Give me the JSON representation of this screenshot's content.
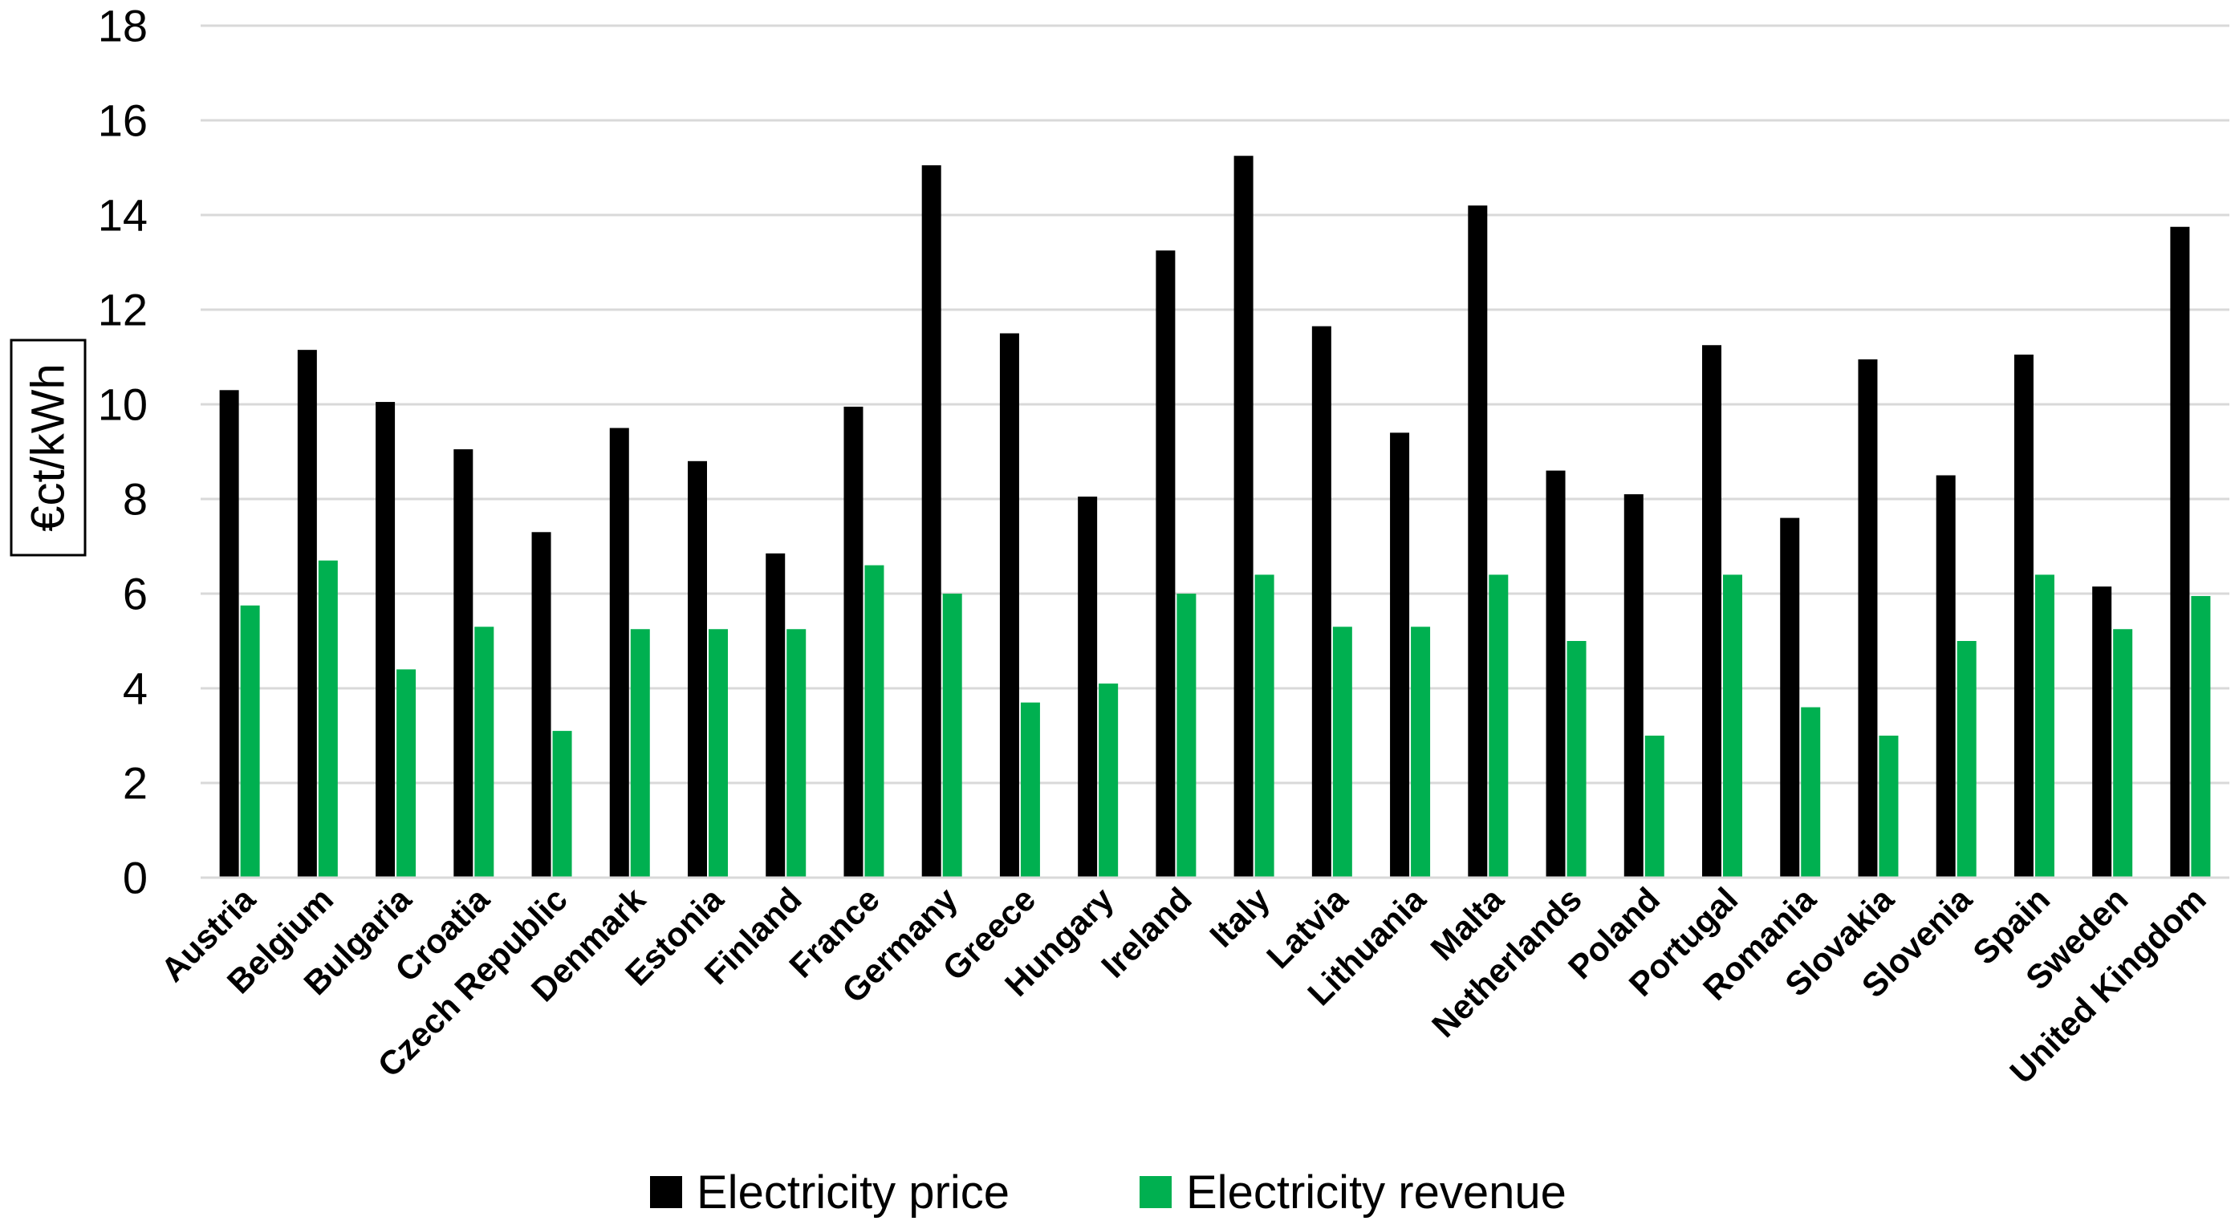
{
  "chart_data": {
    "type": "bar",
    "title": "",
    "xlabel": "",
    "ylabel": "€ct/kWh",
    "ylim": [
      0,
      18
    ],
    "yticks": [
      0,
      2,
      4,
      6,
      8,
      10,
      12,
      14,
      16,
      18
    ],
    "grid": true,
    "legend_position": "bottom",
    "categories": [
      "Austria",
      "Belgium",
      "Bulgaria",
      "Croatia",
      "Czech Republic",
      "Denmark",
      "Estonia",
      "Finland",
      "France",
      "Germany",
      "Greece",
      "Hungary",
      "Ireland",
      "Italy",
      "Latvia",
      "Lithuania",
      "Malta",
      "Netherlands",
      "Poland",
      "Portugal",
      "Romania",
      "Slovakia",
      "Slovenia",
      "Spain",
      "Sweden",
      "United Kingdom"
    ],
    "series": [
      {
        "name": "Electricity price",
        "color": "#000000",
        "values": [
          10.3,
          11.15,
          10.05,
          9.05,
          7.3,
          9.5,
          8.8,
          6.85,
          9.95,
          15.05,
          11.5,
          8.05,
          13.25,
          15.25,
          11.65,
          9.4,
          14.2,
          8.6,
          8.1,
          11.25,
          7.6,
          10.95,
          8.5,
          11.05,
          6.15,
          13.75
        ]
      },
      {
        "name": "Electricity revenue",
        "color": "#00b050",
        "values": [
          5.75,
          6.7,
          4.4,
          5.3,
          3.1,
          5.25,
          5.25,
          5.25,
          6.6,
          6.0,
          3.7,
          4.1,
          6.0,
          6.4,
          5.3,
          5.3,
          6.4,
          5.0,
          3.0,
          6.4,
          3.6,
          3.0,
          5.0,
          6.4,
          5.25,
          5.95
        ]
      }
    ]
  }
}
